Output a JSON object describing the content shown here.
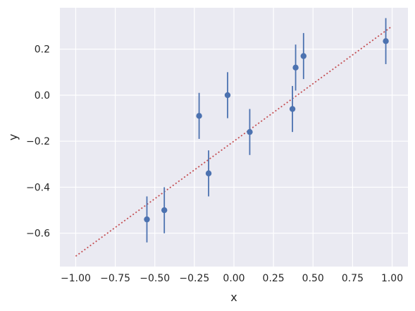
{
  "chart_data": {
    "type": "scatter",
    "title": "",
    "xlabel": "x",
    "ylabel": "y",
    "xlim": [
      -1.1,
      1.1
    ],
    "ylim": [
      -0.745,
      0.38
    ],
    "grid": true,
    "background_color": "#eaeaf2",
    "grid_color": "#ffffff",
    "x_ticks": [
      -1.0,
      -0.75,
      -0.5,
      -0.25,
      0.0,
      0.25,
      0.5,
      0.75,
      1.0
    ],
    "x_tick_labels": [
      "−1.00",
      "−0.75",
      "−0.50",
      "−0.25",
      "0.00",
      "0.25",
      "0.50",
      "0.75",
      "1.00"
    ],
    "y_ticks": [
      -0.6,
      -0.4,
      -0.2,
      0.0,
      0.2
    ],
    "y_tick_labels": [
      "−0.6",
      "−0.4",
      "−0.2",
      "0.0",
      "0.2"
    ],
    "series": [
      {
        "kind": "errorbar",
        "color": "#4c72b0",
        "x": [
          -0.55,
          -0.44,
          -0.22,
          -0.16,
          -0.04,
          0.1,
          0.37,
          0.39,
          0.44,
          0.96
        ],
        "y": [
          -0.54,
          -0.5,
          -0.09,
          -0.34,
          0.0,
          -0.16,
          -0.06,
          0.12,
          0.17,
          0.235
        ],
        "yerr": 0.1
      },
      {
        "kind": "line",
        "style": "dotted",
        "color": "#c44e52",
        "x": [
          -1.0,
          1.0
        ],
        "y": [
          -0.7,
          0.3
        ]
      }
    ]
  }
}
